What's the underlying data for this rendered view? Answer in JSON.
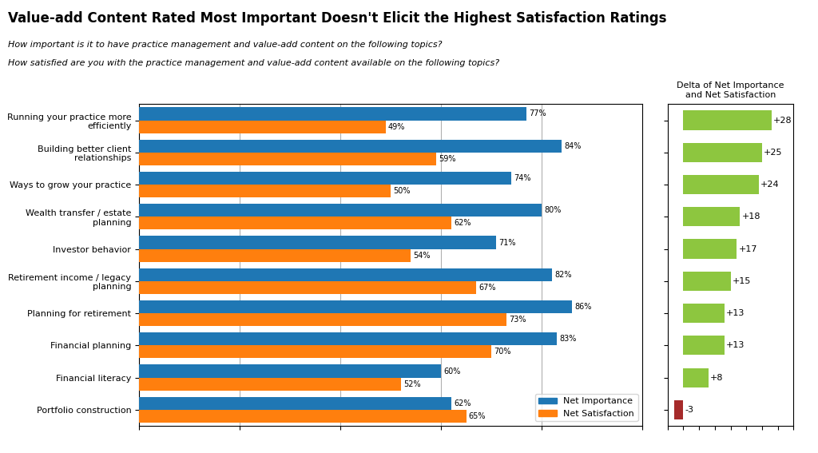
{
  "chart_data": [
    {
      "type": "bar",
      "orientation": "horizontal",
      "title": "Value-add Content Rated Most Important Doesn't Elicit the Highest Satisfaction Ratings",
      "subtitle": [
        "How important is it to have practice management and value-add content on the following topics?",
        "How satisfied are you with the practice management and value-add content available on the following topics?"
      ],
      "categories": [
        "Running your practice more\nefficiently",
        "Building better client\nrelationships",
        "Ways to grow your practice",
        "Wealth transfer / estate\nplanning",
        "Investor behavior",
        "Retirement income / legacy\nplanning",
        "Planning for retirement",
        "Financial planning",
        "Financial literacy",
        "Portfolio construction"
      ],
      "series": [
        {
          "name": "Net Importance",
          "values": [
            77,
            84,
            74,
            80,
            71,
            82,
            86,
            83,
            60,
            62
          ],
          "value_labels": [
            "77%",
            "84%",
            "74%",
            "80%",
            "71%",
            "82%",
            "86%",
            "83%",
            "60%",
            "62%"
          ]
        },
        {
          "name": "Net Satisfaction",
          "values": [
            49,
            59,
            50,
            62,
            54,
            67,
            73,
            70,
            52,
            65
          ],
          "value_labels": [
            "49%",
            "59%",
            "50%",
            "62%",
            "54%",
            "67%",
            "73%",
            "70%",
            "52%",
            "65%"
          ]
        }
      ],
      "xlim": [
        0,
        100
      ],
      "xticks": [
        0,
        20,
        40,
        60,
        80,
        100
      ],
      "grid": true,
      "legend": "lower right",
      "data_labels": true,
      "tick_labels": "y"
    },
    {
      "type": "bar",
      "orientation": "horizontal",
      "title": "Delta of Net Importance\nand Net Satisfaction",
      "categories": [
        "Running your practice more\nefficiently",
        "Building better client\nrelationships",
        "Ways to grow your practice",
        "Wealth transfer / estate\nplanning",
        "Investor behavior",
        "Retirement income / legacy\nplanning",
        "Planning for retirement",
        "Financial planning",
        "Financial literacy",
        "Portfolio construction"
      ],
      "values": [
        28,
        25,
        24,
        18,
        17,
        15,
        13,
        13,
        8,
        -3
      ],
      "value_labels": [
        "+28",
        "+25",
        "+24",
        "+18",
        "+17",
        "+15",
        "+13",
        "+13",
        "+8",
        "-3"
      ],
      "colors": [
        "#8DC63F",
        "#8DC63F",
        "#8DC63F",
        "#8DC63F",
        "#8DC63F",
        "#8DC63F",
        "#8DC63F",
        "#8DC63F",
        "#8DC63F",
        "#A52A2A"
      ],
      "xlim": [
        -5,
        35
      ],
      "xticks": [
        -5,
        0,
        5,
        10,
        15,
        20,
        25,
        30,
        35
      ],
      "grid": false,
      "data_labels": true,
      "tick_labels": false
    }
  ]
}
